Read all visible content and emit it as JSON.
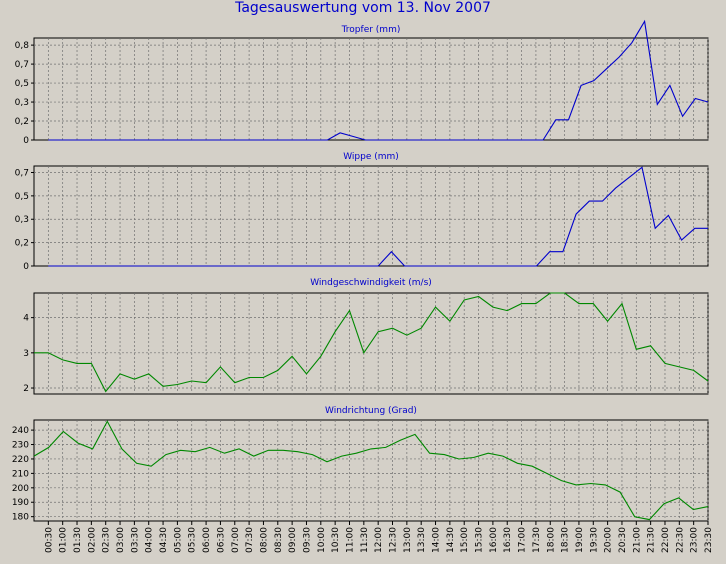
{
  "title": "Tagesauswertung vom 13. Nov 2007",
  "time_labels": [
    "00:30",
    "01:00",
    "01:30",
    "02:00",
    "02:30",
    "03:00",
    "03:30",
    "04:00",
    "04:30",
    "05:00",
    "05:30",
    "06:00",
    "06:30",
    "07:00",
    "07:30",
    "08:00",
    "08:30",
    "09:00",
    "09:30",
    "10:00",
    "10:30",
    "11:00",
    "11:30",
    "12:00",
    "12:30",
    "13:00",
    "13:30",
    "14:00",
    "14:30",
    "15:00",
    "15:30",
    "16:00",
    "16:30",
    "17:00",
    "17:30",
    "18:00",
    "18:30",
    "19:00",
    "19:30",
    "20:00",
    "20:30",
    "21:00",
    "21:30",
    "22:00",
    "22:30",
    "23:00",
    "23:30"
  ],
  "colors": {
    "background": "#d4d0c8",
    "title": "#0000cc",
    "rain_line": "#0000cc",
    "wind_line": "#008800",
    "grid": "#707070"
  },
  "chart_data": [
    {
      "type": "line",
      "title": "Tropfer (mm)",
      "yticks": [
        "0",
        "0,2",
        "0,3",
        "0,5",
        "0,7",
        "0,8"
      ],
      "ytick_values": [
        0,
        0.16,
        0.32,
        0.48,
        0.64,
        0.8
      ],
      "ylim": [
        0,
        0.86
      ],
      "grid": true,
      "line_color": "#0000cc",
      "x_start": 0.5,
      "values": [
        0,
        0,
        0,
        0,
        0,
        0,
        0,
        0,
        0,
        0,
        0,
        0,
        0,
        0,
        0,
        0,
        0,
        0,
        0,
        0,
        0,
        0,
        0,
        0.06,
        0.03,
        0,
        0,
        0,
        0,
        0,
        0,
        0,
        0,
        0,
        0,
        0,
        0,
        0,
        0,
        0,
        0.17,
        0.17,
        0.46,
        0.5,
        0.6,
        0.7,
        0.82,
        1.0,
        0.3,
        0.46,
        0.2,
        0.35,
        0.32
      ]
    },
    {
      "type": "line",
      "title": "Wippe (mm)",
      "yticks": [
        "0",
        "0,2",
        "0,3",
        "0,5",
        "0,7"
      ],
      "ytick_values": [
        0,
        0.18,
        0.36,
        0.54,
        0.72
      ],
      "ylim": [
        0,
        0.77
      ],
      "grid": true,
      "line_color": "#0000cc",
      "x_start": 0.5,
      "values": [
        0,
        0,
        0,
        0,
        0,
        0,
        0,
        0,
        0,
        0,
        0,
        0,
        0,
        0,
        0,
        0,
        0,
        0,
        0,
        0,
        0,
        0,
        0,
        0,
        0,
        0,
        0.11,
        0,
        0,
        0,
        0,
        0,
        0,
        0,
        0,
        0,
        0,
        0,
        0.11,
        0.11,
        0.4,
        0.5,
        0.5,
        0.6,
        0.68,
        0.76,
        0.29,
        0.39,
        0.2,
        0.29,
        0.29
      ]
    },
    {
      "type": "line",
      "title": "Windgeschwindigkeit (m/s)",
      "yticks": [
        "2",
        "3",
        "4"
      ],
      "ytick_values": [
        2,
        3,
        4
      ],
      "ylim": [
        1.83,
        4.7
      ],
      "grid": true,
      "line_color": "#008800",
      "x_start": 0,
      "values": [
        3.0,
        3.0,
        2.8,
        2.7,
        2.7,
        1.9,
        2.4,
        2.25,
        2.4,
        2.05,
        2.1,
        2.2,
        2.15,
        2.6,
        2.15,
        2.3,
        2.3,
        2.5,
        2.9,
        2.4,
        2.9,
        3.6,
        4.2,
        3.0,
        3.6,
        3.7,
        3.5,
        3.7,
        4.3,
        3.9,
        4.5,
        4.6,
        4.3,
        4.2,
        4.4,
        4.4,
        4.7,
        4.7,
        4.4,
        4.4,
        3.9,
        4.4,
        3.1,
        3.2,
        2.7,
        2.6,
        2.5,
        2.2
      ]
    },
    {
      "type": "line",
      "title": "Windrichtung (Grad)",
      "yticks": [
        "180",
        "190",
        "200",
        "210",
        "220",
        "230",
        "240"
      ],
      "ytick_values": [
        180,
        190,
        200,
        210,
        220,
        230,
        240
      ],
      "ylim": [
        177,
        247
      ],
      "grid": true,
      "line_color": "#008800",
      "x_start": 0,
      "values": [
        222,
        228,
        239,
        231,
        227,
        246,
        227,
        217,
        215,
        223,
        226,
        225,
        228,
        224,
        227,
        222,
        226,
        226,
        225,
        223,
        218,
        222,
        224,
        227,
        228,
        233,
        237,
        224,
        223,
        220,
        221,
        224,
        222,
        217,
        215,
        210,
        205,
        202,
        203,
        202,
        197,
        180,
        178,
        189,
        193,
        185,
        187
      ]
    }
  ]
}
